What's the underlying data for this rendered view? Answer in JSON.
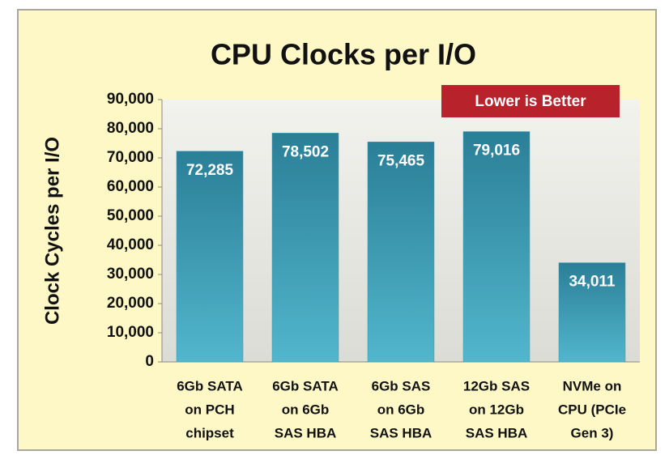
{
  "chart_data": {
    "type": "bar",
    "title": "CPU Clocks per I/O",
    "y_label": "Clock Cycles per I/O",
    "annotation": "Lower is Better",
    "categories": [
      [
        "6Gb SATA",
        "on PCH",
        "chipset"
      ],
      [
        "6Gb SATA",
        "on 6Gb",
        "SAS HBA"
      ],
      [
        "6Gb SAS",
        "on 6Gb",
        "SAS HBA"
      ],
      [
        "12Gb SAS",
        "on 12Gb",
        "SAS HBA"
      ],
      [
        "NVMe on",
        "CPU (PCIe",
        "Gen 3)"
      ]
    ],
    "values": [
      72285,
      78502,
      75465,
      79016,
      34011
    ],
    "value_labels": [
      "72,285",
      "78,502",
      "75,465",
      "79,016",
      "34,011"
    ],
    "color": "#3a9ab2",
    "ylim": [
      0,
      90000
    ],
    "yticks": [
      0,
      {
        "value": 10000,
        "label": "10,000"
      },
      {
        "value": 20000,
        "label": "20,000"
      },
      {
        "value": 30000,
        "label": "30,000"
      },
      {
        "value": 40000,
        "label": "40,000"
      },
      {
        "value": 50000,
        "label": "50,000"
      },
      {
        "value": 60000,
        "label": "60,000"
      },
      {
        "value": 70000,
        "label": "70,000"
      },
      {
        "value": 80000,
        "label": "80,000"
      },
      {
        "value": 90000,
        "label": "90,000"
      }
    ],
    "grid": false
  }
}
